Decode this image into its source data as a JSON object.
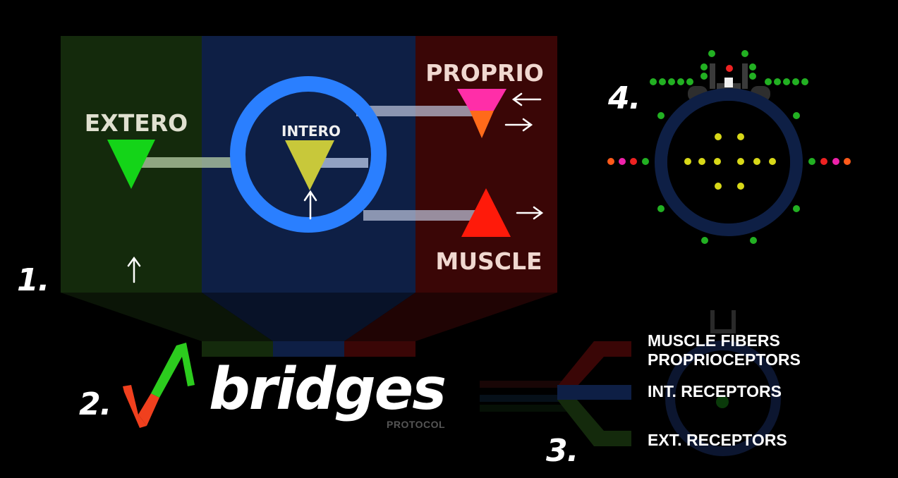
{
  "panel1": {
    "number": "1.",
    "extero_label": "EXTERO",
    "intero_label": "INTERO",
    "proprio_label": "PROPRIO",
    "muscle_label": "MUSCLE",
    "colors": {
      "extero_bg": "#142a0c",
      "intero_bg": "#0e1f45",
      "proprio_bg": "#3a0606",
      "extero_triangle": "#14d418",
      "intero_triangle": "#c8c83a",
      "proprio_top": "#ff2ea8",
      "proprio_bottom": "#ff6a1a",
      "muscle_triangle": "#ff1a0a",
      "ring": "#2a7fff"
    }
  },
  "panel2": {
    "number": "2.",
    "brand": "bridges",
    "sub": "PROTOCOL"
  },
  "panel3": {
    "number": "3.",
    "items": [
      "MUSCLE FIBERS",
      "PROPRIOCEPTORS",
      "INT. RECEPTORS",
      "EXT. RECEPTORS"
    ]
  },
  "panel4": {
    "number": "4."
  }
}
